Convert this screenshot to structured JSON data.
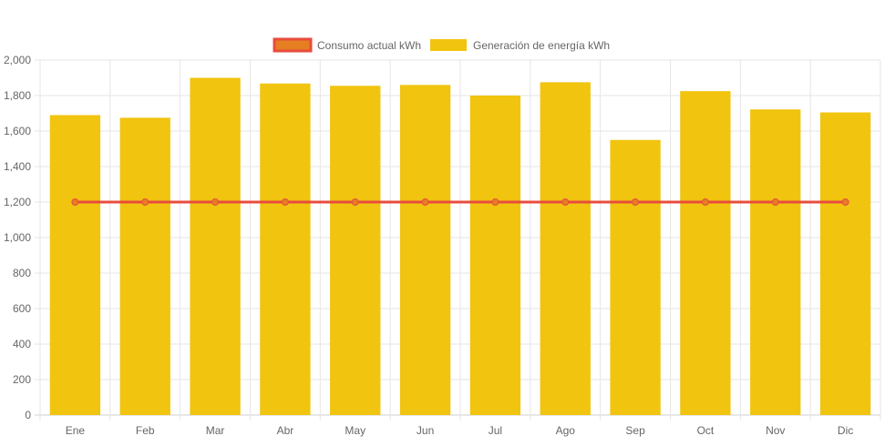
{
  "chart_data": {
    "type": "bar",
    "categories": [
      "Ene",
      "Feb",
      "Mar",
      "Abr",
      "May",
      "Jun",
      "Jul",
      "Ago",
      "Sep",
      "Oct",
      "Nov",
      "Dic"
    ],
    "series": [
      {
        "name": "Consumo actual kWh",
        "type": "line",
        "color": "#e84c3d",
        "point_color": "#e67e22",
        "values": [
          1200,
          1200,
          1200,
          1200,
          1200,
          1200,
          1200,
          1200,
          1200,
          1200,
          1200,
          1200
        ]
      },
      {
        "name": "Generación de energía kWh",
        "type": "bar",
        "color": "#f1c40f",
        "values": [
          1690,
          1675,
          1900,
          1868,
          1855,
          1860,
          1800,
          1875,
          1550,
          1825,
          1722,
          1705
        ]
      }
    ],
    "ylim": [
      0,
      2000
    ],
    "yticks": [
      0,
      200,
      400,
      600,
      800,
      1000,
      1200,
      1400,
      1600,
      1800,
      2000
    ],
    "ytick_labels": [
      "0",
      "200",
      "400",
      "600",
      "800",
      "1,000",
      "1,200",
      "1,400",
      "1,600",
      "1,800",
      "2,000"
    ],
    "grid": true,
    "legend_position": "top-center"
  }
}
